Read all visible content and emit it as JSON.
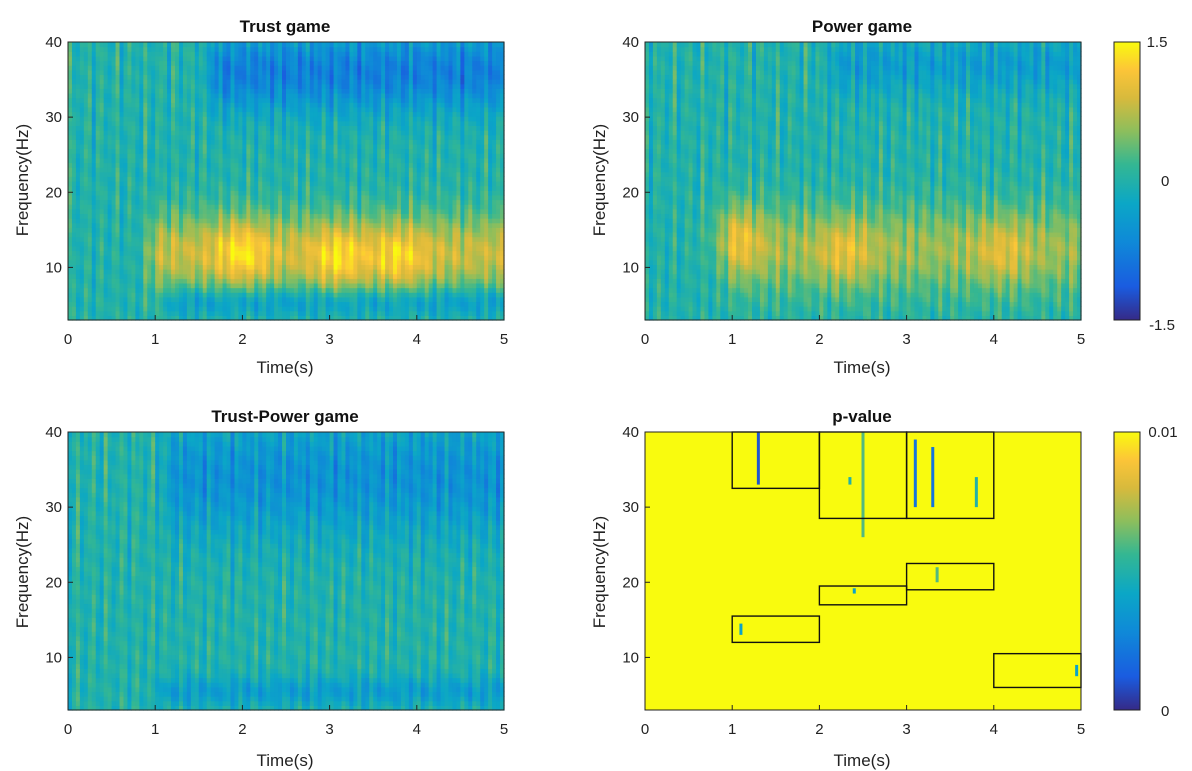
{
  "chart_data": [
    {
      "type": "heatmap",
      "title": "Trust game",
      "xlabel": "Time(s)",
      "ylabel": "Frequency(Hz)",
      "xlim": [
        0,
        5
      ],
      "ylim": [
        3,
        40
      ],
      "xticks": [
        0,
        1,
        2,
        3,
        4,
        5
      ],
      "yticks": [
        10,
        20,
        30,
        40
      ],
      "colormap": "parula",
      "clim": [
        -1.5,
        1.5
      ],
      "features": [
        {
          "desc": "alpha band power increase",
          "t_range": [
            0.8,
            5
          ],
          "f_range": [
            8,
            16
          ],
          "value": 1.1
        },
        {
          "desc": "peak",
          "t": 2.0,
          "f": 12,
          "value": 1.3
        },
        {
          "desc": "peak",
          "t": 3.1,
          "f": 11,
          "value": 1.25
        },
        {
          "desc": "peak",
          "t": 3.8,
          "f": 11,
          "value": 1.1
        },
        {
          "desc": "high frequency decrease",
          "t_range": [
            1.5,
            5
          ],
          "f_range": [
            32,
            40
          ],
          "value": -1.0
        },
        {
          "desc": "low frequency decrease",
          "t_range": [
            1,
            5
          ],
          "f_range": [
            4,
            7
          ],
          "value": -0.6
        }
      ]
    },
    {
      "type": "heatmap",
      "title": "Power game",
      "xlabel": "Time(s)",
      "ylabel": "Frequency(Hz)",
      "xlim": [
        0,
        5
      ],
      "ylim": [
        3,
        40
      ],
      "xticks": [
        0,
        1,
        2,
        3,
        4,
        5
      ],
      "yticks": [
        10,
        20,
        30,
        40
      ],
      "colormap": "parula",
      "clim": [
        -1.5,
        1.5
      ],
      "features": [
        {
          "desc": "alpha band power increase",
          "t_range": [
            0.8,
            5
          ],
          "f_range": [
            8,
            17
          ],
          "value": 0.8
        },
        {
          "desc": "peak",
          "t": 1.05,
          "f": 14,
          "value": 1.2
        },
        {
          "desc": "peak",
          "t": 2.3,
          "f": 12,
          "value": 1.0
        },
        {
          "desc": "peak",
          "t": 4.1,
          "f": 12,
          "value": 0.9
        },
        {
          "desc": "high frequency decrease",
          "t_range": [
            2,
            5
          ],
          "f_range": [
            34,
            40
          ],
          "value": -0.5
        }
      ]
    },
    {
      "type": "heatmap",
      "title": "Trust-Power game",
      "xlabel": "Time(s)",
      "ylabel": "Frequency(Hz)",
      "xlim": [
        0,
        5
      ],
      "ylim": [
        3,
        40
      ],
      "xticks": [
        0,
        1,
        2,
        3,
        4,
        5
      ],
      "yticks": [
        10,
        20,
        30,
        40
      ],
      "colormap": "parula",
      "clim": [
        -1.5,
        1.5
      ],
      "features": [
        {
          "desc": "mostly near zero difference",
          "value": 0.0
        },
        {
          "desc": "high frequency decrease",
          "t_range": [
            1,
            5
          ],
          "f_range": [
            28,
            40
          ],
          "value": -0.7
        },
        {
          "desc": "low frequency decrease",
          "t_range": [
            0.9,
            5
          ],
          "f_range": [
            4,
            7
          ],
          "value": -0.5
        }
      ]
    },
    {
      "type": "heatmap",
      "title": "p-value",
      "xlabel": "Time(s)",
      "ylabel": "Frequency(Hz)",
      "xlim": [
        0,
        5
      ],
      "ylim": [
        3,
        40
      ],
      "xticks": [
        0,
        1,
        2,
        3,
        4,
        5
      ],
      "yticks": [
        10,
        20,
        30,
        40
      ],
      "colormap": "parula",
      "clim": [
        0,
        0.01
      ],
      "background_value": 0.01,
      "significant_regions": [
        {
          "t": [
            1,
            2
          ],
          "f": [
            32.5,
            40
          ]
        },
        {
          "t": [
            2,
            3
          ],
          "f": [
            28.5,
            40
          ]
        },
        {
          "t": [
            3,
            4
          ],
          "f": [
            28.5,
            40
          ]
        },
        {
          "t": [
            2,
            3
          ],
          "f": [
            17,
            19.5
          ]
        },
        {
          "t": [
            3,
            4
          ],
          "f": [
            19,
            22.5
          ]
        },
        {
          "t": [
            1,
            2
          ],
          "f": [
            12,
            15.5
          ]
        },
        {
          "t": [
            4,
            5
          ],
          "f": [
            6,
            10.5
          ]
        }
      ],
      "low_p_points": [
        {
          "t": 1.3,
          "f_range": [
            33,
            40
          ],
          "value": 0.001
        },
        {
          "t": 2.35,
          "f_range": [
            33,
            34
          ],
          "value": 0.005
        },
        {
          "t": 2.5,
          "f_range": [
            26,
            40
          ],
          "value": 0.006
        },
        {
          "t": 3.1,
          "f_range": [
            30,
            39
          ],
          "value": 0.002
        },
        {
          "t": 3.3,
          "f_range": [
            30,
            38
          ],
          "value": 0.002
        },
        {
          "t": 3.8,
          "f_range": [
            30,
            34
          ],
          "value": 0.005
        },
        {
          "t": 2.4,
          "f_range": [
            18.5,
            19.2
          ],
          "value": 0.004
        },
        {
          "t": 3.35,
          "f_range": [
            20,
            22
          ],
          "value": 0.006
        },
        {
          "t": 1.1,
          "f_range": [
            13,
            14.5
          ],
          "value": 0.004
        },
        {
          "t": 4.95,
          "f_range": [
            7.5,
            9
          ],
          "value": 0.004
        }
      ]
    }
  ],
  "colorbars": [
    {
      "ticks": [
        "1.5",
        "0",
        "-1.5"
      ]
    },
    {
      "ticks": [
        "0.01",
        "0"
      ]
    }
  ]
}
